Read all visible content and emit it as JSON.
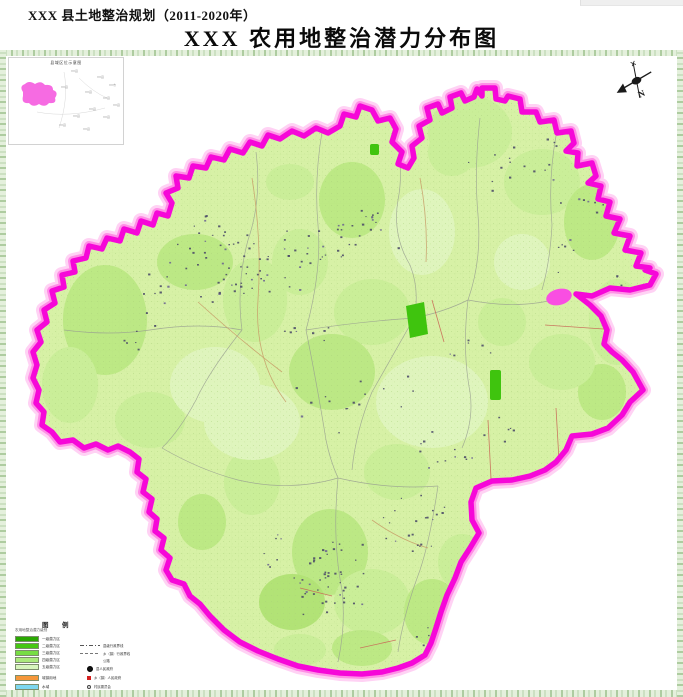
{
  "header": {
    "line1": "XXX 县土地整治规划（2011-2020年）",
    "line2": "XXX 农用地整治潜力分布图"
  },
  "inset": {
    "title": "县域区位示意图",
    "labels": [
      "XX县",
      "XX县",
      "XX市",
      "XX县",
      "XX县",
      "XX县",
      "XX县",
      "XX县",
      "XX县",
      "XX县",
      "XX县",
      "XX县"
    ]
  },
  "compass": {
    "label": "N"
  },
  "legend": {
    "header": [
      "图",
      "例"
    ],
    "section_title": "农用地整治潜力级别",
    "classes": [
      {
        "label": "一级潜力区",
        "color": "#2aa802"
      },
      {
        "label": "二级潜力区",
        "color": "#46c713"
      },
      {
        "label": "三级潜力区",
        "color": "#77dd44"
      },
      {
        "label": "四级潜力区",
        "color": "#abe97d"
      },
      {
        "label": "五级潜力区",
        "color": "#d7f5bd"
      },
      {
        "label": "城镇用地",
        "color": "#f5973a"
      },
      {
        "label": "水域",
        "color": "#7ed7ef"
      }
    ],
    "symbols": [
      {
        "label": "县级行政界线",
        "type": "dashdot-line"
      },
      {
        "label": "乡（镇）行政界线",
        "type": "dashed-line"
      },
      {
        "label": "公路",
        "type": "text-only"
      },
      {
        "label": "县人民政府",
        "type": "dot-filled"
      },
      {
        "label": "乡（镇）人民政府",
        "type": "square"
      },
      {
        "label": "村民委员会",
        "type": "dot-ring"
      }
    ]
  },
  "map": {
    "colors": {
      "base": "#d7f1a6",
      "boundary": "#f607d8",
      "boundary_glow": "#ff8fe6",
      "boundary_halo": "#ffd2f4",
      "village_dot": "#4d4d68",
      "village_dot_alt": "#6e6890",
      "road_red": "#c96a58",
      "road_tan": "#c8a06a",
      "enclave": "#f94ee2"
    }
  }
}
